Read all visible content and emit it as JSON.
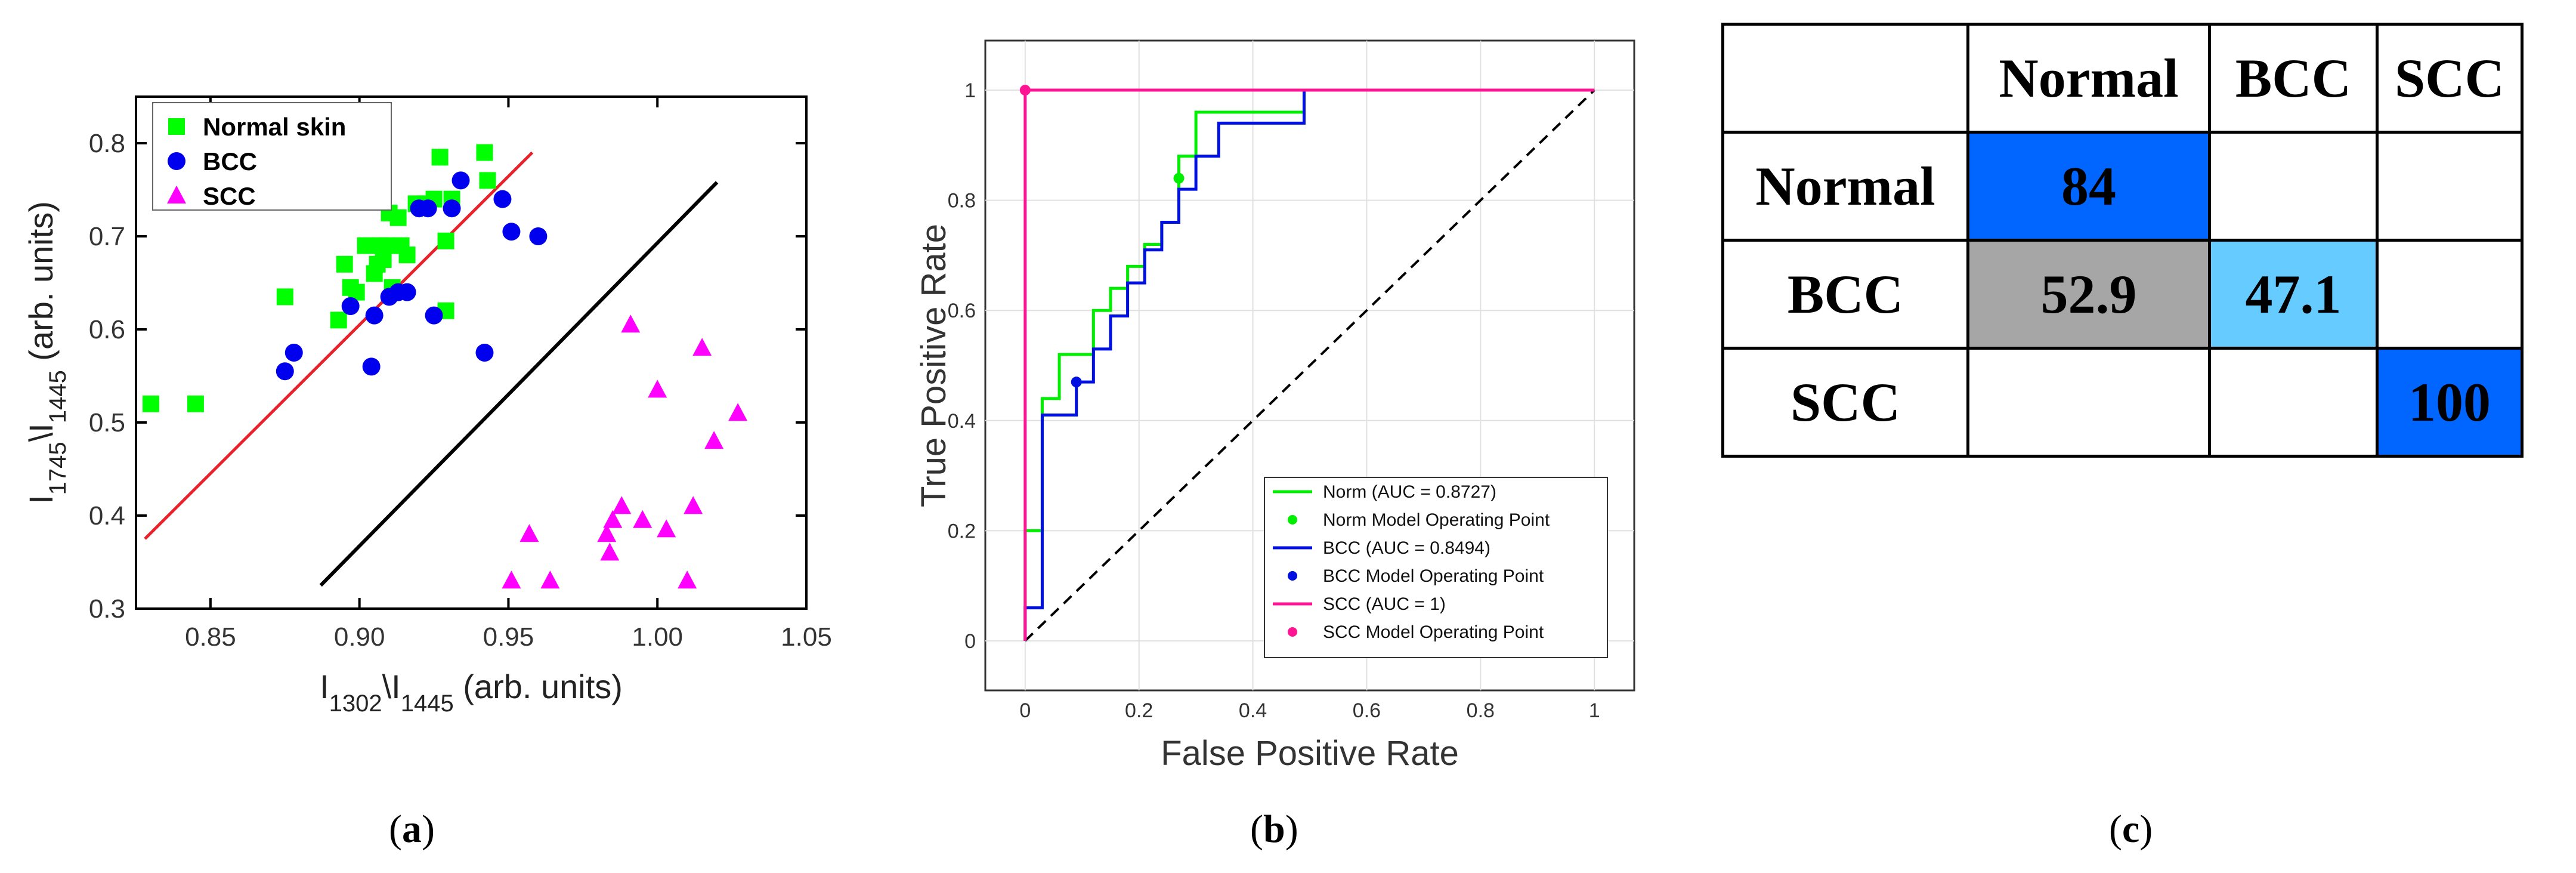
{
  "captions": {
    "a": "a",
    "b": "b",
    "c": "c"
  },
  "colors": {
    "normal": "#00ff00",
    "bcc": "#0000ee",
    "scc": "#ff00ff",
    "fit": "#e8222a",
    "boundary": "#000000",
    "norm_roc": "#00ee00",
    "bcc_roc": "#0010e0",
    "scc_roc": "#ff1493"
  },
  "chart_data": [
    {
      "type": "scatter",
      "id": "a",
      "xlabel": "I1302\\I1445 (arb. units)",
      "ylabel": "I1745\\I1445 (arb. units)",
      "xlabel_parts": [
        "I",
        "1302",
        "\\I",
        "1445",
        " (arb. units)"
      ],
      "ylabel_parts": [
        "I",
        "1745",
        "\\I",
        "1445",
        " (arb. units)"
      ],
      "xlim": [
        0.825,
        1.05
      ],
      "ylim": [
        0.3,
        0.85
      ],
      "xticks": [
        0.85,
        0.9,
        0.95,
        1.0,
        1.05
      ],
      "xtick_labels": [
        "0.85",
        "0.90",
        "0.95",
        "1.00",
        "1.05"
      ],
      "yticks": [
        0.3,
        0.4,
        0.5,
        0.6,
        0.7,
        0.8
      ],
      "ytick_labels": [
        "0.3",
        "0.4",
        "0.5",
        "0.6",
        "0.7",
        "0.8"
      ],
      "legend": [
        "Normal skin",
        "BCC",
        "SCC"
      ],
      "series": [
        {
          "name": "Normal skin",
          "marker": "square",
          "points": [
            [
              0.83,
              0.52
            ],
            [
              0.845,
              0.52
            ],
            [
              0.875,
              0.635
            ],
            [
              0.893,
              0.61
            ],
            [
              0.895,
              0.67
            ],
            [
              0.897,
              0.645
            ],
            [
              0.899,
              0.64
            ],
            [
              0.902,
              0.69
            ],
            [
              0.905,
              0.66
            ],
            [
              0.906,
              0.67
            ],
            [
              0.907,
              0.69
            ],
            [
              0.908,
              0.675
            ],
            [
              0.909,
              0.69
            ],
            [
              0.91,
              0.725
            ],
            [
              0.911,
              0.645
            ],
            [
              0.913,
              0.72
            ],
            [
              0.914,
              0.69
            ],
            [
              0.916,
              0.68
            ],
            [
              0.919,
              0.735
            ],
            [
              0.922,
              0.735
            ],
            [
              0.925,
              0.74
            ],
            [
              0.927,
              0.785
            ],
            [
              0.929,
              0.695
            ],
            [
              0.929,
              0.62
            ],
            [
              0.931,
              0.74
            ],
            [
              0.942,
              0.79
            ],
            [
              0.943,
              0.76
            ]
          ]
        },
        {
          "name": "BCC",
          "marker": "circle",
          "points": [
            [
              0.875,
              0.555
            ],
            [
              0.878,
              0.575
            ],
            [
              0.897,
              0.625
            ],
            [
              0.904,
              0.56
            ],
            [
              0.905,
              0.615
            ],
            [
              0.91,
              0.635
            ],
            [
              0.913,
              0.64
            ],
            [
              0.916,
              0.64
            ],
            [
              0.92,
              0.73
            ],
            [
              0.923,
              0.73
            ],
            [
              0.925,
              0.615
            ],
            [
              0.931,
              0.73
            ],
            [
              0.934,
              0.76
            ],
            [
              0.942,
              0.575
            ],
            [
              0.948,
              0.74
            ],
            [
              0.951,
              0.705
            ],
            [
              0.96,
              0.7
            ]
          ]
        },
        {
          "name": "SCC",
          "marker": "triangle",
          "points": [
            [
              0.951,
              0.33
            ],
            [
              0.957,
              0.38
            ],
            [
              0.964,
              0.33
            ],
            [
              0.983,
              0.38
            ],
            [
              0.984,
              0.36
            ],
            [
              0.985,
              0.395
            ],
            [
              0.988,
              0.41
            ],
            [
              0.991,
              0.605
            ],
            [
              0.995,
              0.395
            ],
            [
              1.0,
              0.535
            ],
            [
              1.003,
              0.385
            ],
            [
              1.01,
              0.33
            ],
            [
              1.012,
              0.41
            ],
            [
              1.015,
              0.58
            ],
            [
              1.019,
              0.48
            ],
            [
              1.027,
              0.51
            ]
          ]
        }
      ],
      "lines": [
        {
          "name": "fit",
          "from": [
            0.828,
            0.375
          ],
          "to": [
            0.958,
            0.79
          ]
        },
        {
          "name": "boundary",
          "from": [
            0.887,
            0.325
          ],
          "to": [
            1.02,
            0.758
          ]
        }
      ]
    },
    {
      "type": "line",
      "id": "b",
      "xlabel": "False Positive Rate",
      "ylabel": "True Positive Rate",
      "xlim": [
        -0.07,
        1.07
      ],
      "ylim": [
        -0.09,
        1.09
      ],
      "xticks": [
        0,
        0.2,
        0.4,
        0.6,
        0.8,
        1
      ],
      "xtick_labels": [
        "0",
        "0.2",
        "0.4",
        "0.6",
        "0.8",
        "1"
      ],
      "yticks": [
        0,
        0.2,
        0.4,
        0.6,
        0.8,
        1
      ],
      "ytick_labels": [
        "0",
        "0.2",
        "0.4",
        "0.6",
        "0.8",
        "1"
      ],
      "grid": true,
      "legend": [
        "Norm (AUC = 0.8727)",
        "Norm Model Operating Point",
        "BCC (AUC = 0.8494)",
        "BCC Model Operating Point",
        "SCC (AUC = 1)",
        "SCC Model Operating Point"
      ],
      "series": [
        {
          "name": "Norm",
          "auc": 0.8727,
          "points": [
            [
              0,
              0
            ],
            [
              0,
              0.2
            ],
            [
              0.03,
              0.2
            ],
            [
              0.03,
              0.44
            ],
            [
              0.06,
              0.44
            ],
            [
              0.06,
              0.52
            ],
            [
              0.12,
              0.52
            ],
            [
              0.12,
              0.6
            ],
            [
              0.15,
              0.6
            ],
            [
              0.15,
              0.64
            ],
            [
              0.18,
              0.64
            ],
            [
              0.18,
              0.68
            ],
            [
              0.21,
              0.68
            ],
            [
              0.21,
              0.72
            ],
            [
              0.24,
              0.72
            ],
            [
              0.24,
              0.76
            ],
            [
              0.27,
              0.76
            ],
            [
              0.27,
              0.8
            ],
            [
              0.27,
              0.88
            ],
            [
              0.3,
              0.88
            ],
            [
              0.3,
              0.96
            ],
            [
              0.49,
              0.96
            ],
            [
              0.49,
              1
            ],
            [
              1,
              1
            ]
          ],
          "operating_point": [
            0.27,
            0.84
          ]
        },
        {
          "name": "BCC",
          "auc": 0.8494,
          "points": [
            [
              0,
              0
            ],
            [
              0,
              0.06
            ],
            [
              0.03,
              0.06
            ],
            [
              0.03,
              0.41
            ],
            [
              0.09,
              0.41
            ],
            [
              0.09,
              0.47
            ],
            [
              0.12,
              0.47
            ],
            [
              0.12,
              0.53
            ],
            [
              0.15,
              0.53
            ],
            [
              0.15,
              0.59
            ],
            [
              0.18,
              0.59
            ],
            [
              0.18,
              0.65
            ],
            [
              0.21,
              0.65
            ],
            [
              0.21,
              0.71
            ],
            [
              0.24,
              0.71
            ],
            [
              0.24,
              0.76
            ],
            [
              0.27,
              0.76
            ],
            [
              0.27,
              0.82
            ],
            [
              0.3,
              0.82
            ],
            [
              0.3,
              0.88
            ],
            [
              0.34,
              0.88
            ],
            [
              0.34,
              0.94
            ],
            [
              0.49,
              0.94
            ],
            [
              0.49,
              1
            ],
            [
              1,
              1
            ]
          ],
          "operating_point": [
            0.09,
            0.47
          ]
        },
        {
          "name": "SCC",
          "auc": 1,
          "points": [
            [
              0,
              0
            ],
            [
              0,
              1
            ],
            [
              1,
              1
            ]
          ],
          "operating_point": [
            0,
            1
          ]
        }
      ],
      "reference_line": {
        "from": [
          0,
          0
        ],
        "to": [
          1,
          1
        ],
        "style": "dashed"
      }
    },
    {
      "type": "table",
      "id": "c",
      "columns": [
        "Normal",
        "BCC",
        "SCC"
      ],
      "rows": [
        {
          "label": "Normal",
          "cells": [
            "84",
            "",
            ""
          ]
        },
        {
          "label": "BCC",
          "cells": [
            "52.9",
            "47.1",
            ""
          ]
        },
        {
          "label": "SCC",
          "cells": [
            "",
            "",
            "100"
          ]
        }
      ]
    }
  ]
}
